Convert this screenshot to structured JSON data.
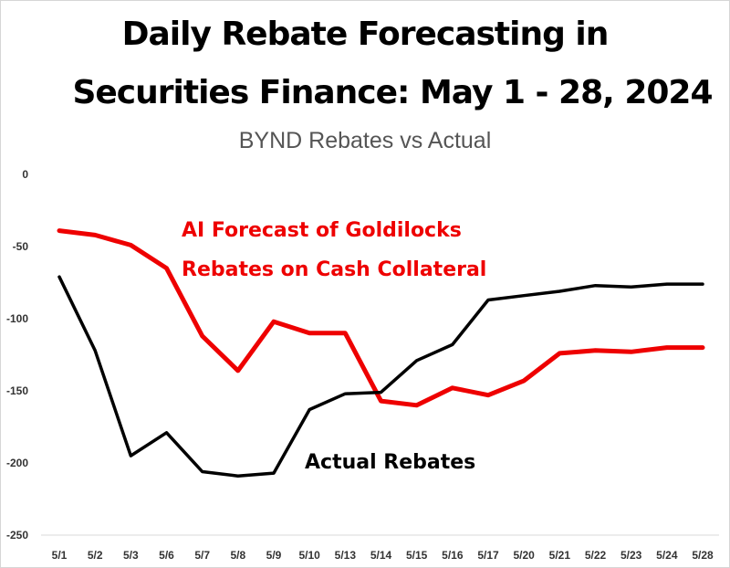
{
  "chart_data": {
    "type": "line",
    "title_line1": "Daily Rebate Forecasting in",
    "title_line2": "Securities Finance:  May 1 - 28, 2024",
    "subtitle": "BYND Rebates vs Actual",
    "xlabel": "",
    "ylabel": "",
    "ylim": [
      -250,
      0
    ],
    "yticks": [
      0,
      -50,
      -100,
      -150,
      -200,
      -250
    ],
    "grid": false,
    "categories": [
      "5/1",
      "5/2",
      "5/3",
      "5/6",
      "5/7",
      "5/8",
      "5/9",
      "5/10",
      "5/13",
      "5/14",
      "5/15",
      "5/16",
      "5/17",
      "5/20",
      "5/21",
      "5/22",
      "5/23",
      "5/24",
      "5/28"
    ],
    "series": [
      {
        "key": "forecast",
        "color": "#ee0000",
        "values": [
          -39,
          -42,
          -49,
          -65,
          -112,
          -136,
          -102,
          -110,
          -110,
          -157,
          -160,
          -148,
          -153,
          -143,
          -124,
          -122,
          -123,
          -120,
          -120
        ]
      },
      {
        "key": "actual",
        "color": "#000000",
        "values": [
          -71,
          -122,
          -195,
          -179,
          -206,
          -209,
          -207,
          -163,
          -152,
          -151,
          -129,
          -118,
          -87,
          -84,
          -81,
          -77,
          -78,
          -76,
          -76
        ]
      }
    ],
    "annotations": [
      {
        "series": "forecast",
        "line1": "AI Forecast of Goldilocks",
        "line2": "Rebates on Cash Collateral"
      },
      {
        "series": "actual",
        "text": "Actual Rebates"
      }
    ]
  }
}
